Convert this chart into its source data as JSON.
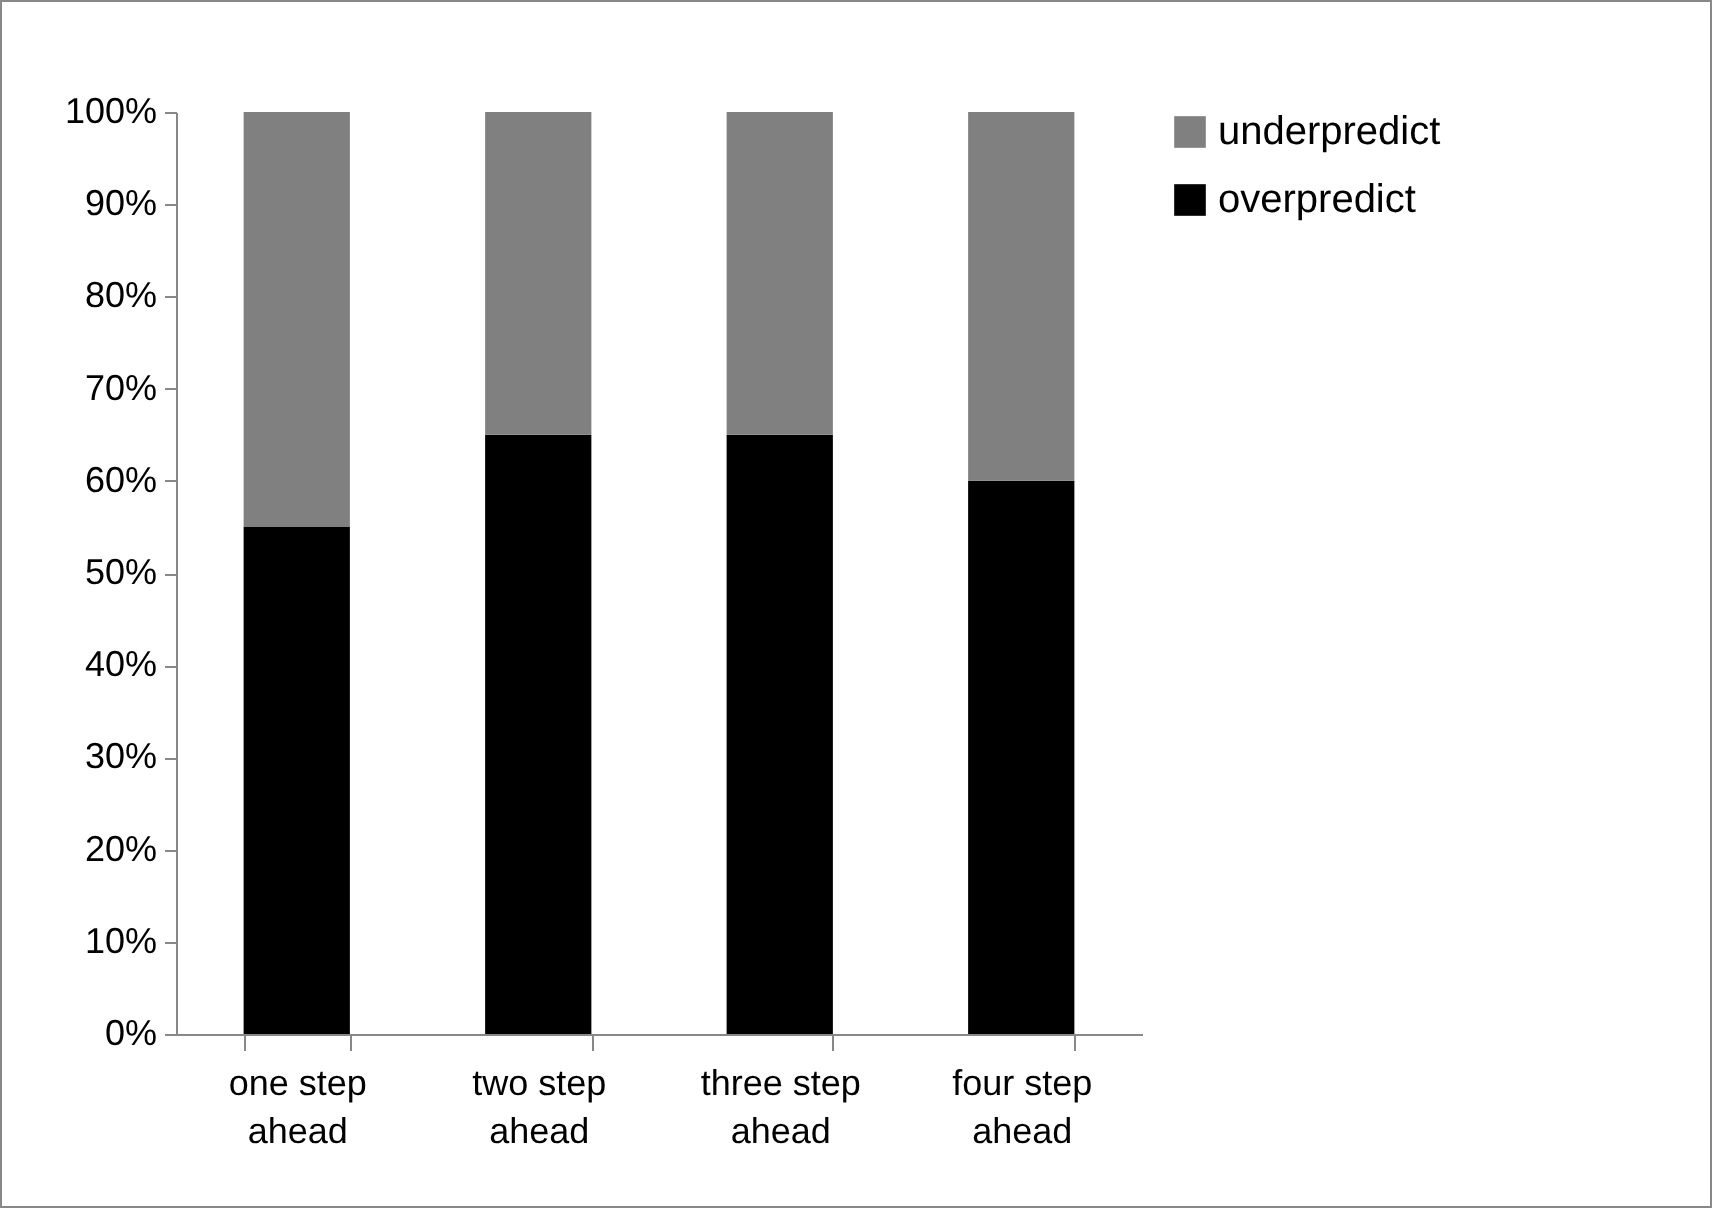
{
  "chart_data": {
    "type": "bar",
    "stacked": true,
    "categories": [
      "one step ahead",
      "two step ahead",
      "three step ahead",
      "four step ahead"
    ],
    "series": [
      {
        "name": "overpredict",
        "color": "#000000",
        "values": [
          55,
          65,
          65,
          60
        ]
      },
      {
        "name": "underpredict",
        "color": "#808080",
        "values": [
          45,
          35,
          35,
          40
        ]
      }
    ],
    "ylim": [
      0,
      100
    ],
    "yticks": [
      {
        "value": 0,
        "label": "0%"
      },
      {
        "value": 10,
        "label": "10%"
      },
      {
        "value": 20,
        "label": "20%"
      },
      {
        "value": 30,
        "label": "30%"
      },
      {
        "value": 40,
        "label": "40%"
      },
      {
        "value": 50,
        "label": "50%"
      },
      {
        "value": 60,
        "label": "60%"
      },
      {
        "value": 70,
        "label": "70%"
      },
      {
        "value": 80,
        "label": "80%"
      },
      {
        "value": 90,
        "label": "90%"
      },
      {
        "value": 100,
        "label": "100%"
      }
    ],
    "grid": false,
    "legend": "right"
  }
}
